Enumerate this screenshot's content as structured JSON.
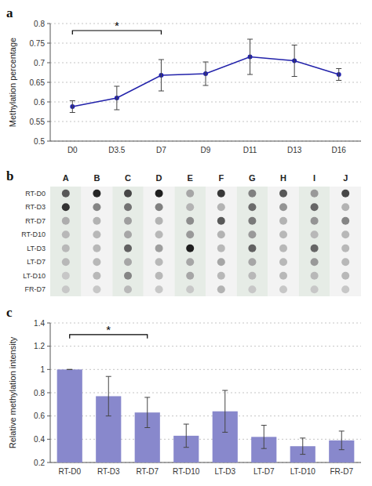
{
  "chart_data": [
    {
      "type": "line",
      "title": "a",
      "categories": [
        "D0",
        "D3.5",
        "D7",
        "D9",
        "D11",
        "D13",
        "D16"
      ],
      "values": [
        0.588,
        0.61,
        0.668,
        0.672,
        0.715,
        0.705,
        0.67
      ],
      "errors": [
        0.015,
        0.03,
        0.04,
        0.03,
        0.045,
        0.04,
        0.015
      ],
      "y_label": "Methylation percentage",
      "ylim": [
        0.5,
        0.8
      ],
      "yticks": [
        0.5,
        0.55,
        0.6,
        0.65,
        0.7,
        0.75,
        0.8
      ],
      "color": "#2222aa",
      "marker": "circle",
      "grid": true,
      "annotations": [
        {
          "text": "*",
          "x_start": "D0",
          "x_end": "D7",
          "y": 0.782
        }
      ]
    },
    {
      "type": "heatmap",
      "title": "b",
      "x": [
        "A",
        "B",
        "C",
        "D",
        "E",
        "F",
        "G",
        "H",
        "I",
        "J"
      ],
      "y": [
        "RT-D0",
        "RT-D3",
        "RT-D7",
        "RT-D10",
        "LT-D3",
        "LT-D7",
        "LT-D10",
        "FR-D7"
      ],
      "cells": [
        [
          0.65,
          0.85,
          0.72,
          0.88,
          0.35,
          0.78,
          0.5,
          0.65,
          0.4,
          0.72
        ],
        [
          0.8,
          0.48,
          0.55,
          0.5,
          0.3,
          0.3,
          0.58,
          0.42,
          0.6,
          0.3
        ],
        [
          0.32,
          0.3,
          0.38,
          0.3,
          0.45,
          0.65,
          0.52,
          0.3,
          0.42,
          0.48
        ],
        [
          0.28,
          0.28,
          0.35,
          0.28,
          0.4,
          0.3,
          0.4,
          0.28,
          0.28,
          0.28
        ],
        [
          0.28,
          0.28,
          0.62,
          0.38,
          0.88,
          0.28,
          0.62,
          0.28,
          0.6,
          0.28
        ],
        [
          0.28,
          0.28,
          0.35,
          0.28,
          0.35,
          0.35,
          0.35,
          0.28,
          0.4,
          0.28
        ],
        [
          0.22,
          0.28,
          0.48,
          0.28,
          0.35,
          0.28,
          0.28,
          0.28,
          0.28,
          0.28
        ],
        [
          0.22,
          0.22,
          0.28,
          0.22,
          0.22,
          0.3,
          0.22,
          0.22,
          0.22,
          0.22
        ]
      ],
      "marker": "circle"
    },
    {
      "type": "bar",
      "title": "c",
      "categories": [
        "RT-D0",
        "RT-D3",
        "RT-D7",
        "RT-D10",
        "LT-D3",
        "LT-D7",
        "LT-D10",
        "FR-D7"
      ],
      "values": [
        1.0,
        0.77,
        0.63,
        0.43,
        0.64,
        0.42,
        0.34,
        0.39
      ],
      "errors": [
        0.0,
        0.17,
        0.13,
        0.1,
        0.18,
        0.1,
        0.07,
        0.08
      ],
      "y_label": "Relative methylation intensity",
      "ylim": [
        0.2,
        1.4
      ],
      "yticks": [
        0.2,
        0.4,
        0.6,
        0.8,
        1.0,
        1.2,
        1.4
      ],
      "color": "#8888cc",
      "grid": true,
      "annotations": [
        {
          "text": "*",
          "x_start": "RT-D0",
          "x_end": "RT-D7",
          "y": 1.3
        }
      ]
    }
  ]
}
